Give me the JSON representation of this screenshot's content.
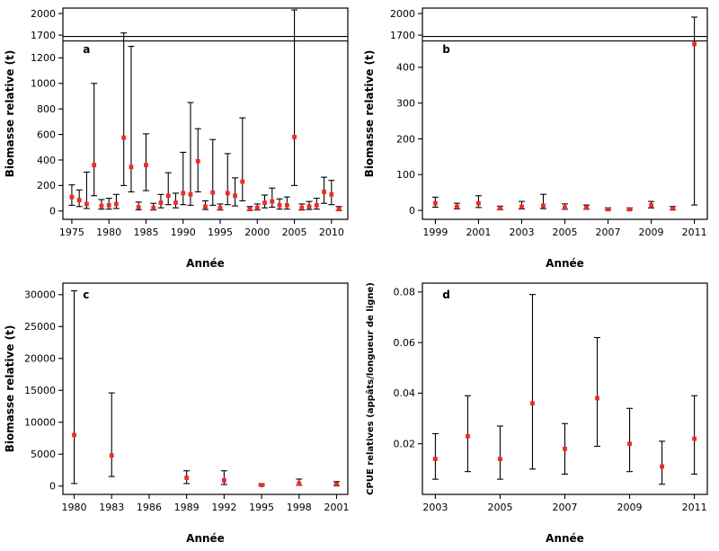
{
  "figure": {
    "background": "#ffffff",
    "line_color": "#000000",
    "point_color": "#ee2c24",
    "point_format": "x,y,lo,hi"
  },
  "chart_data": [
    {
      "panel_label": "a",
      "type": "scatter",
      "xlabel": "Année",
      "ylabel": "Biomasse relative (t)",
      "legend": "none",
      "grid": "off",
      "x_range": [
        1973.8,
        2012.2
      ],
      "x_ticks": [
        1975,
        1980,
        1985,
        1990,
        1995,
        2000,
        2005,
        2010
      ],
      "axis_break": true,
      "y_segments": [
        {
          "range": [
            -65,
            1350
          ],
          "ticks": [
            0,
            200,
            400,
            600,
            800,
            1000,
            1200
          ],
          "frac": 0.855
        },
        {
          "range": [
            1650,
            2075
          ],
          "ticks": [
            1700,
            2000
          ],
          "frac": 0.145
        }
      ],
      "points": [
        [
          1975,
          110,
          45,
          205
        ],
        [
          1976,
          85,
          35,
          165
        ],
        [
          1977,
          55,
          20,
          305
        ],
        [
          1978,
          360,
          120,
          1000
        ],
        [
          1979,
          40,
          15,
          90
        ],
        [
          1980,
          45,
          15,
          100
        ],
        [
          1981,
          55,
          20,
          130
        ],
        [
          1982,
          575,
          200,
          1730
        ],
        [
          1983,
          345,
          150,
          1290
        ],
        [
          1984,
          30,
          10,
          70
        ],
        [
          1985,
          360,
          160,
          605
        ],
        [
          1986,
          25,
          8,
          60
        ],
        [
          1987,
          65,
          25,
          130
        ],
        [
          1988,
          120,
          50,
          300
        ],
        [
          1989,
          65,
          25,
          140
        ],
        [
          1990,
          140,
          50,
          460
        ],
        [
          1991,
          130,
          45,
          850
        ],
        [
          1992,
          390,
          150,
          645
        ],
        [
          1993,
          35,
          12,
          80
        ],
        [
          1994,
          145,
          45,
          560
        ],
        [
          1995,
          25,
          8,
          55
        ],
        [
          1996,
          140,
          50,
          450
        ],
        [
          1997,
          120,
          40,
          260
        ],
        [
          1998,
          230,
          80,
          730
        ],
        [
          1999,
          15,
          5,
          35
        ],
        [
          2000,
          25,
          8,
          55
        ],
        [
          2001,
          65,
          25,
          125
        ],
        [
          2002,
          75,
          30,
          180
        ],
        [
          2003,
          45,
          15,
          95
        ],
        [
          2004,
          45,
          15,
          110
        ],
        [
          2005,
          580,
          200,
          2050
        ],
        [
          2006,
          25,
          8,
          55
        ],
        [
          2007,
          35,
          12,
          75
        ],
        [
          2008,
          45,
          15,
          100
        ],
        [
          2009,
          150,
          60,
          265
        ],
        [
          2010,
          130,
          50,
          240
        ],
        [
          2011,
          15,
          5,
          35
        ]
      ]
    },
    {
      "panel_label": "b",
      "type": "scatter",
      "xlabel": "Année",
      "ylabel": "Biomasse relative (t)",
      "legend": "none",
      "grid": "off",
      "x_range": [
        1998.4,
        2011.6
      ],
      "x_ticks": [
        1999,
        2001,
        2003,
        2005,
        2007,
        2009,
        2011
      ],
      "axis_break": true,
      "y_segments": [
        {
          "range": [
            -25,
            480
          ],
          "ticks": [
            0,
            100,
            200,
            300,
            400
          ],
          "frac": 0.855
        },
        {
          "range": [
            1650,
            2075
          ],
          "ticks": [
            1700,
            2000
          ],
          "frac": 0.145
        }
      ],
      "points": [
        [
          1999,
          20,
          9,
          37
        ],
        [
          2000,
          10,
          4,
          20
        ],
        [
          2001,
          20,
          8,
          41
        ],
        [
          2002,
          6,
          2,
          12
        ],
        [
          2003,
          10,
          4,
          25
        ],
        [
          2004,
          13,
          5,
          45
        ],
        [
          2005,
          8,
          3,
          18
        ],
        [
          2006,
          8,
          3,
          15
        ],
        [
          2007,
          3,
          1,
          7
        ],
        [
          2008,
          3,
          1,
          7
        ],
        [
          2009,
          14,
          7,
          25
        ],
        [
          2010,
          5,
          2,
          11
        ],
        [
          2011,
          465,
          15,
          1950
        ]
      ]
    },
    {
      "panel_label": "c",
      "type": "scatter",
      "xlabel": "Année",
      "ylabel": "Biomasse relative (t)",
      "legend": "none",
      "grid": "off",
      "x_range": [
        1979.1,
        2001.9
      ],
      "x_ticks": [
        1980,
        1983,
        1986,
        1989,
        1992,
        1995,
        1998,
        2001
      ],
      "axis_break": false,
      "y_segments": [
        {
          "range": [
            -1300,
            31800
          ],
          "ticks": [
            0,
            5000,
            10000,
            15000,
            20000,
            25000,
            30000
          ],
          "frac": 1
        }
      ],
      "points": [
        [
          1980,
          8000,
          400,
          30600
        ],
        [
          1983,
          4800,
          1500,
          14600
        ],
        [
          1989,
          1300,
          400,
          2400
        ],
        [
          1992,
          900,
          250,
          2400
        ],
        [
          1995,
          150,
          50,
          350
        ],
        [
          1998,
          400,
          120,
          1100
        ],
        [
          2001,
          250,
          80,
          700
        ]
      ]
    },
    {
      "panel_label": "d",
      "type": "scatter",
      "xlabel": "Année",
      "ylabel": "CPUE relatives (appâts/longueur de ligne)",
      "legend": "none",
      "grid": "off",
      "x_range": [
        2002.6,
        2011.4
      ],
      "x_ticks": [
        2003,
        2005,
        2007,
        2009,
        2011
      ],
      "axis_break": false,
      "y_segments": [
        {
          "range": [
            0.0,
            0.0835
          ],
          "ticks": [
            0.02,
            0.04,
            0.06,
            0.08
          ],
          "frac": 1
        }
      ],
      "points": [
        [
          2003,
          0.014,
          0.006,
          0.024
        ],
        [
          2004,
          0.023,
          0.009,
          0.039
        ],
        [
          2005,
          0.014,
          0.006,
          0.027
        ],
        [
          2006,
          0.036,
          0.01,
          0.079
        ],
        [
          2007,
          0.018,
          0.008,
          0.028
        ],
        [
          2008,
          0.038,
          0.019,
          0.062
        ],
        [
          2009,
          0.02,
          0.009,
          0.034
        ],
        [
          2010,
          0.011,
          0.004,
          0.021
        ],
        [
          2011,
          0.022,
          0.008,
          0.039
        ]
      ]
    }
  ]
}
